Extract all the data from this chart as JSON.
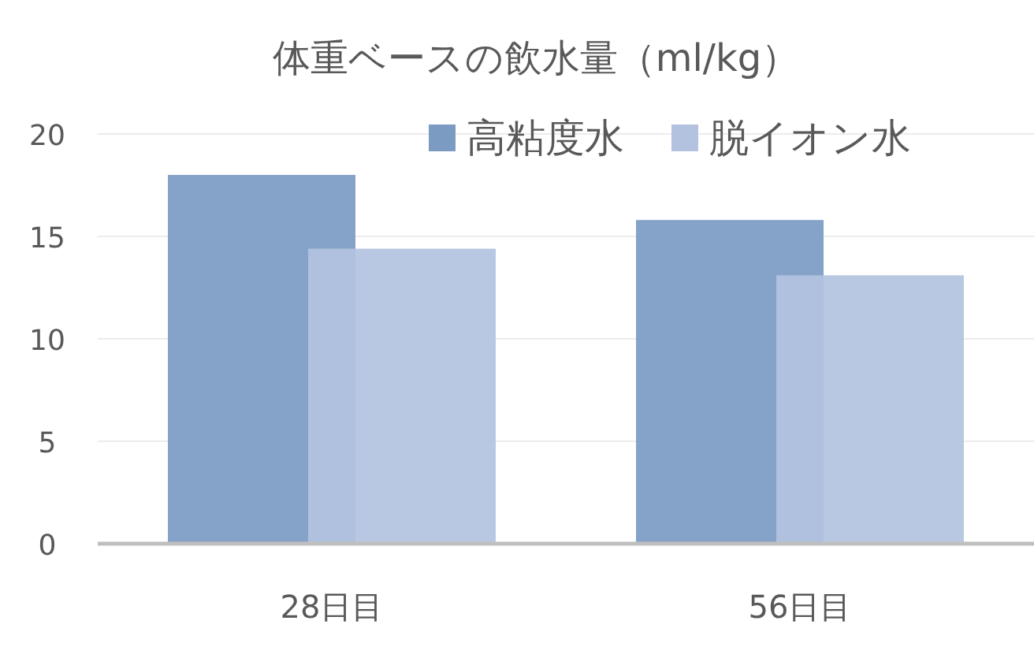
{
  "chart_data": {
    "type": "bar",
    "title": "体重ベースの飲水量（ml/kg）",
    "categories": [
      "28日目",
      "56日目"
    ],
    "series": [
      {
        "name": "高粘度水",
        "color": "#7b9bc3",
        "values": [
          18.0,
          15.8
        ]
      },
      {
        "name": "脱イオン水",
        "color": "#b3c3df",
        "values": [
          14.4,
          13.1
        ]
      }
    ],
    "ylim": [
      0,
      20
    ],
    "yticks": [
      0,
      5,
      10,
      15,
      20
    ],
    "grid": "y",
    "legend": "top right"
  }
}
